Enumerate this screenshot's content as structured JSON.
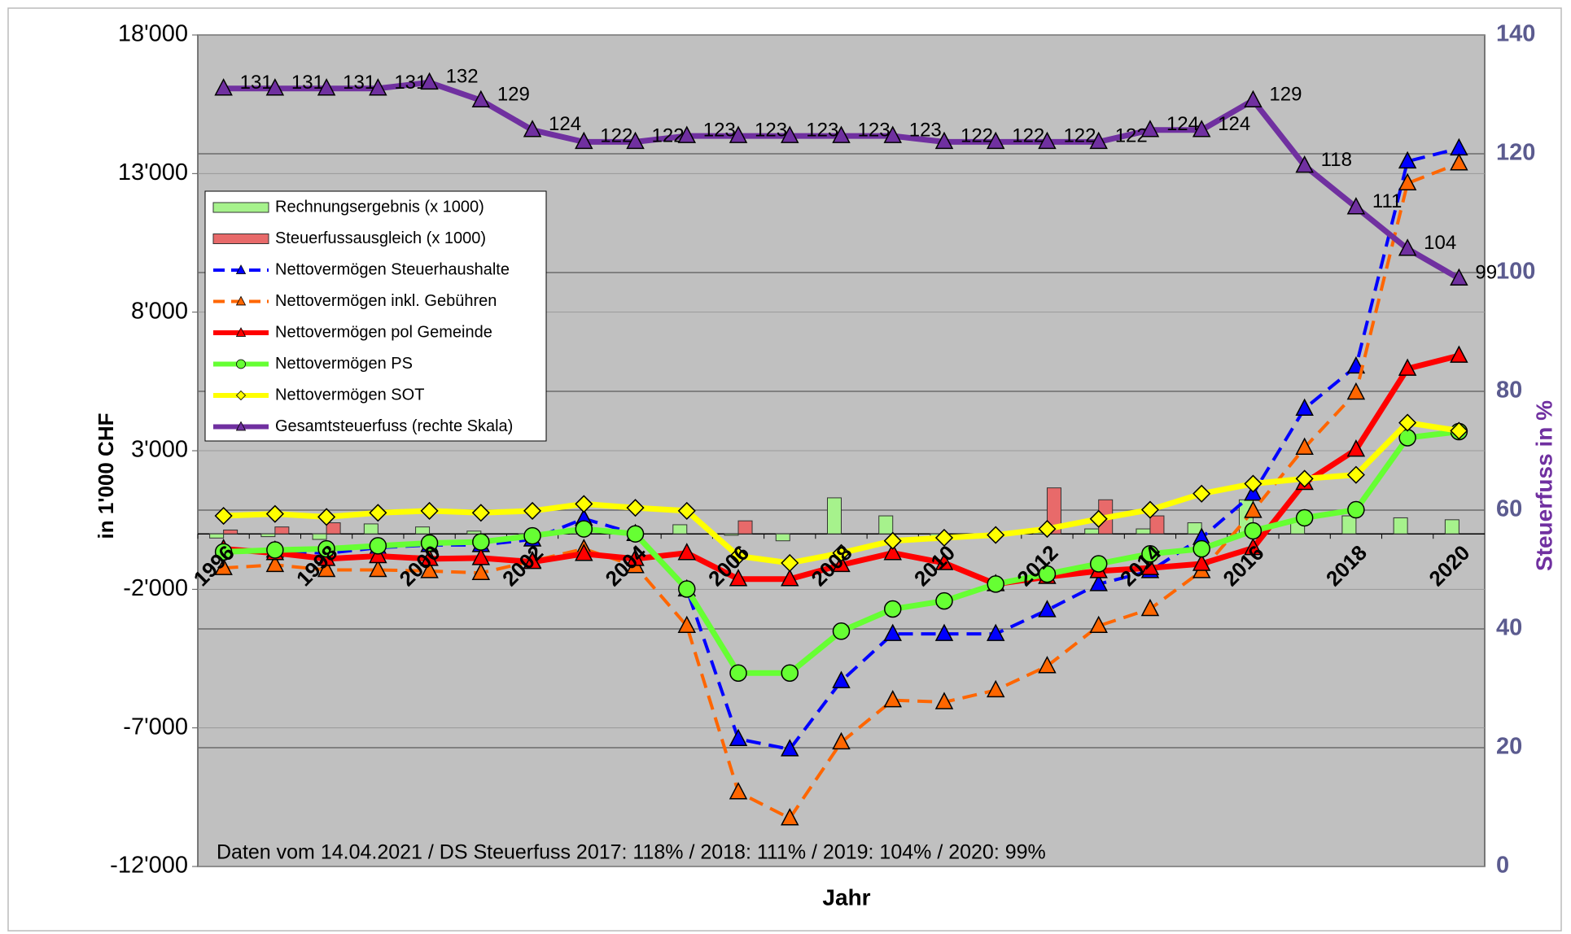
{
  "chart_data": {
    "type": "combo",
    "y_label": "in 1'000 CHF",
    "y2_label": "Steuerfuss in %",
    "x_label": "Jahr",
    "annotation": "Daten vom 14.04.2021 / DS Steuerfuss 2017: 118% / 2018: 111% / 2019: 104% / 2020: 99%",
    "categories": [
      "1996",
      null,
      "1998",
      null,
      "2000",
      null,
      "2002",
      null,
      "2004",
      null,
      "2006",
      null,
      "2008",
      null,
      "2010",
      null,
      "2012",
      null,
      "2014",
      null,
      "2016",
      null,
      "2018",
      null,
      "2020"
    ],
    "ylim": [
      -12000,
      18000
    ],
    "yticks": [
      {
        "value": -12000,
        "label": "-12'000"
      },
      {
        "value": -7000,
        "label": "-7'000"
      },
      {
        "value": -2000,
        "label": "-2'000"
      },
      {
        "value": 3000,
        "label": "3'000"
      },
      {
        "value": 8000,
        "label": "8'000"
      },
      {
        "value": 13000,
        "label": "13'000"
      },
      {
        "value": 18000,
        "label": "18'000"
      }
    ],
    "y2lim": [
      0,
      140
    ],
    "y2ticks": [
      0,
      20,
      40,
      60,
      80,
      100,
      120,
      140
    ],
    "grid": true,
    "legend": "upper left",
    "series": [
      {
        "name": "Rechnungsergebnis (x 1000)",
        "type": "bar",
        "color": "#a6f28c",
        "values": [
          -150,
          -100,
          -200,
          360,
          250,
          100,
          -150,
          100,
          50,
          330,
          -50,
          -250,
          1300,
          650,
          -100,
          -50,
          50,
          180,
          180,
          400,
          1230,
          470,
          650,
          580,
          510
        ]
      },
      {
        "name": "Steuerfussausgleich (x 1000)",
        "type": "bar",
        "color": "#e86a6a",
        "values": [
          140,
          250,
          400,
          0,
          0,
          0,
          0,
          0,
          0,
          0,
          470,
          0,
          0,
          0,
          0,
          0,
          1660,
          1230,
          650,
          0,
          0,
          0,
          0,
          0,
          0
        ]
      },
      {
        "name": "Nettovermögen Steuerhaushalte",
        "type": "line",
        "color": "#0000ff",
        "dash": true,
        "marker": "triangle",
        "values": [
          -600,
          -600,
          -700,
          -500,
          -400,
          -400,
          -200,
          550,
          0,
          -2000,
          -7400,
          -7770,
          -5310,
          -3610,
          -3610,
          -3610,
          -2750,
          -1810,
          -1340,
          -140,
          1450,
          4520,
          6040,
          13440,
          13910
        ]
      },
      {
        "name": "Nettovermögen inkl. Gebühren",
        "type": "line",
        "color": "#ff6600",
        "dash": true,
        "marker": "triangle",
        "values": [
          -1230,
          -1120,
          -1300,
          -1300,
          -1340,
          -1410,
          -980,
          -540,
          -1160,
          -3320,
          -9320,
          -10260,
          -7520,
          -6000,
          -6070,
          -5640,
          -4770,
          -3320,
          -2710,
          -1340,
          830,
          3110,
          5100,
          12650,
          13370
        ]
      },
      {
        "name": "Nettovermögen pol Gemeinde",
        "type": "line",
        "color": "#ff0000",
        "marker": "triangle",
        "values": [
          -540,
          -690,
          -900,
          -800,
          -900,
          -870,
          -1010,
          -720,
          -900,
          -690,
          -1630,
          -1630,
          -1120,
          -690,
          -1050,
          -1810,
          -1550,
          -1340,
          -1230,
          -1080,
          -510,
          1840,
          3040,
          5960,
          6430
        ]
      },
      {
        "name": "Nettovermögen PS",
        "type": "line",
        "color": "#66ff33",
        "marker": "circle",
        "values": [
          -650,
          -580,
          -540,
          -430,
          -330,
          -290,
          -70,
          180,
          0,
          -1990,
          -5020,
          -5020,
          -3510,
          -2710,
          -2420,
          -1810,
          -1450,
          -1080,
          -720,
          -540,
          110,
          580,
          870,
          3470,
          3690
        ]
      },
      {
        "name": "Nettovermögen SOT",
        "type": "line",
        "color": "#ffff00",
        "marker": "diamond",
        "values": [
          650,
          720,
          610,
          760,
          830,
          760,
          830,
          1080,
          940,
          830,
          -800,
          -1050,
          -690,
          -250,
          -140,
          -40,
          180,
          540,
          870,
          1450,
          1810,
          1990,
          2130,
          4010,
          3720
        ]
      },
      {
        "name": "Gesamtsteuerfuss (rechte Skala)",
        "type": "line",
        "color": "#7030a0",
        "marker": "triangle",
        "axis": "y2",
        "data_labels": true,
        "values": [
          131,
          131,
          131,
          131,
          132,
          129,
          124,
          122,
          122,
          123,
          123,
          123,
          123,
          123,
          122,
          122,
          122,
          122,
          124,
          124,
          129,
          118,
          111,
          104,
          99
        ]
      }
    ]
  }
}
